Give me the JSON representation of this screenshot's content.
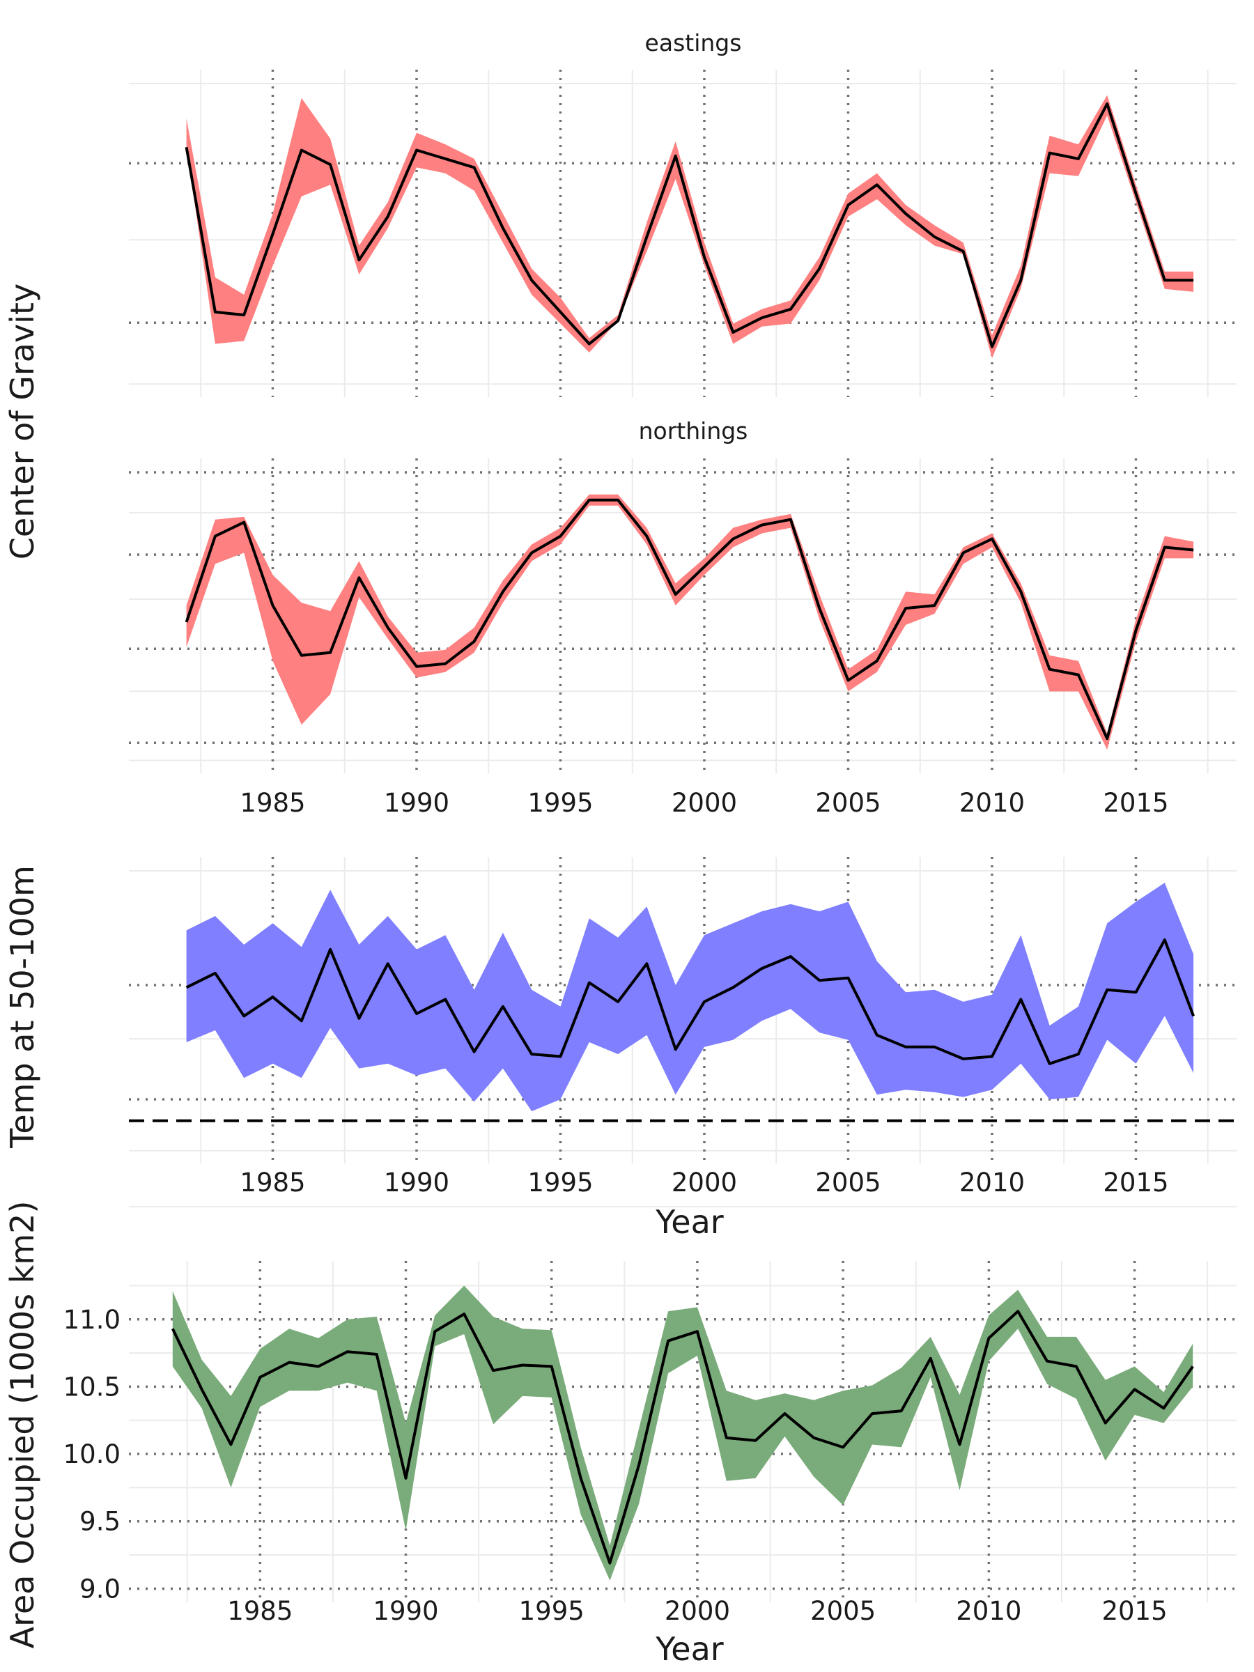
{
  "y_axis_titles": {
    "cog": "Center of Gravity",
    "temp": "Temp at 50-100m",
    "area": "Area Occupied (1000s km2)"
  },
  "x_axis_title": "Year",
  "colors": {
    "eastings_band": "#ff8080",
    "northings_band": "#ff8080",
    "temp_band": "#7f7fff",
    "area_band": "#7aab7a",
    "line": "#000000",
    "grid": "#ebebeb",
    "dotted_grid": "#707070"
  },
  "chart_data": [
    {
      "type": "area",
      "panel": "eastings",
      "title": "eastings",
      "x": [
        1982,
        1983,
        1984,
        1985,
        1986,
        1987,
        1988,
        1989,
        1990,
        1991,
        1992,
        1993,
        1994,
        1995,
        1996,
        1997,
        1998,
        1999,
        2000,
        2001,
        2002,
        2003,
        2004,
        2005,
        2006,
        2007,
        2008,
        2009,
        2010,
        2011,
        2012,
        2013,
        2014,
        2015,
        2016,
        2017
      ],
      "y_tick_labels": "none",
      "grid": true,
      "ylim": [
        0,
        1
      ],
      "series": [
        {
          "values": [
            0.81,
            0.24,
            0.23,
            0.51,
            0.8,
            0.75,
            0.42,
            0.57,
            0.8,
            0.77,
            0.74,
            0.53,
            0.35,
            0.24,
            0.13,
            0.21,
            0.5,
            0.78,
            0.43,
            0.17,
            0.22,
            0.25,
            0.39,
            0.61,
            0.68,
            0.58,
            0.5,
            0.45,
            0.12,
            0.35,
            0.79,
            0.77,
            0.96,
            0.65,
            0.35,
            0.35
          ],
          "lower": [
            0.81,
            0.13,
            0.14,
            0.4,
            0.64,
            0.68,
            0.37,
            0.53,
            0.74,
            0.72,
            0.66,
            0.48,
            0.3,
            0.2,
            0.1,
            0.21,
            0.45,
            0.7,
            0.4,
            0.13,
            0.19,
            0.2,
            0.35,
            0.57,
            0.63,
            0.54,
            0.47,
            0.44,
            0.08,
            0.32,
            0.72,
            0.71,
            0.92,
            0.62,
            0.32,
            0.31
          ],
          "upper": [
            0.91,
            0.36,
            0.3,
            0.58,
            0.98,
            0.84,
            0.47,
            0.62,
            0.86,
            0.82,
            0.77,
            0.58,
            0.39,
            0.29,
            0.15,
            0.23,
            0.55,
            0.83,
            0.48,
            0.2,
            0.25,
            0.28,
            0.43,
            0.65,
            0.72,
            0.61,
            0.54,
            0.48,
            0.16,
            0.4,
            0.85,
            0.82,
            0.99,
            0.68,
            0.38,
            0.38
          ]
        }
      ]
    },
    {
      "type": "area",
      "panel": "northings",
      "title": "northings",
      "x": [
        1982,
        1983,
        1984,
        1985,
        1986,
        1987,
        1988,
        1989,
        1990,
        1991,
        1992,
        1993,
        1994,
        1995,
        1996,
        1997,
        1998,
        1999,
        2000,
        2001,
        2002,
        2003,
        2004,
        2005,
        2006,
        2007,
        2008,
        2009,
        2010,
        2011,
        2012,
        2013,
        2014,
        2015,
        2016,
        2017
      ],
      "y_tick_labels": "none",
      "grid": true,
      "ylim": [
        0,
        1
      ],
      "series": [
        {
          "values": [
            0.49,
            0.8,
            0.85,
            0.55,
            0.37,
            0.38,
            0.65,
            0.47,
            0.33,
            0.34,
            0.42,
            0.6,
            0.74,
            0.8,
            0.93,
            0.93,
            0.8,
            0.59,
            0.69,
            0.79,
            0.84,
            0.86,
            0.54,
            0.28,
            0.35,
            0.54,
            0.55,
            0.74,
            0.79,
            0.6,
            0.32,
            0.3,
            0.07,
            0.46,
            0.76,
            0.75
          ],
          "lower": [
            0.4,
            0.7,
            0.74,
            0.35,
            0.12,
            0.23,
            0.58,
            0.43,
            0.29,
            0.31,
            0.38,
            0.56,
            0.71,
            0.77,
            0.91,
            0.91,
            0.77,
            0.55,
            0.66,
            0.76,
            0.81,
            0.83,
            0.5,
            0.24,
            0.31,
            0.48,
            0.52,
            0.7,
            0.76,
            0.56,
            0.24,
            0.24,
            0.03,
            0.42,
            0.72,
            0.72
          ],
          "upper": [
            0.55,
            0.86,
            0.87,
            0.66,
            0.56,
            0.53,
            0.71,
            0.51,
            0.38,
            0.39,
            0.47,
            0.64,
            0.77,
            0.83,
            0.95,
            0.95,
            0.83,
            0.63,
            0.72,
            0.83,
            0.86,
            0.88,
            0.59,
            0.32,
            0.39,
            0.6,
            0.59,
            0.76,
            0.81,
            0.63,
            0.37,
            0.35,
            0.09,
            0.5,
            0.8,
            0.78
          ]
        }
      ]
    },
    {
      "type": "area",
      "panel": "temp",
      "x": [
        1982,
        1983,
        1984,
        1985,
        1986,
        1987,
        1988,
        1989,
        1990,
        1991,
        1992,
        1993,
        1994,
        1995,
        1996,
        1997,
        1998,
        1999,
        2000,
        2001,
        2002,
        2003,
        2004,
        2005,
        2006,
        2007,
        2008,
        2009,
        2010,
        2011,
        2012,
        2013,
        2014,
        2015,
        2016,
        2017
      ],
      "x_ticks": [
        1985,
        1990,
        1995,
        2000,
        2005,
        2010,
        2015
      ],
      "xlabel": "Year",
      "ylabel": "Temp at 50-100m",
      "y_tick_labels": "none",
      "reference_line": "dashed horizontal",
      "grid": true,
      "ylim": [
        0,
        1
      ],
      "series": [
        {
          "values": [
            0.56,
            0.62,
            0.44,
            0.52,
            0.42,
            0.72,
            0.43,
            0.66,
            0.45,
            0.51,
            0.29,
            0.48,
            0.28,
            0.27,
            0.58,
            0.5,
            0.66,
            0.3,
            0.5,
            0.56,
            0.64,
            0.69,
            0.59,
            0.6,
            0.36,
            0.31,
            0.31,
            0.26,
            0.27,
            0.51,
            0.24,
            0.28,
            0.55,
            0.54,
            0.76,
            0.44
          ],
          "lower": [
            0.33,
            0.38,
            0.18,
            0.24,
            0.18,
            0.39,
            0.22,
            0.24,
            0.19,
            0.22,
            0.08,
            0.22,
            0.04,
            0.09,
            0.33,
            0.28,
            0.36,
            0.11,
            0.31,
            0.34,
            0.42,
            0.47,
            0.37,
            0.34,
            0.11,
            0.13,
            0.12,
            0.1,
            0.13,
            0.24,
            0.09,
            0.1,
            0.34,
            0.24,
            0.44,
            0.2
          ],
          "upper": [
            0.8,
            0.86,
            0.74,
            0.83,
            0.73,
            0.97,
            0.74,
            0.86,
            0.72,
            0.78,
            0.55,
            0.79,
            0.55,
            0.48,
            0.85,
            0.77,
            0.9,
            0.57,
            0.78,
            0.83,
            0.88,
            0.91,
            0.88,
            0.92,
            0.67,
            0.54,
            0.55,
            0.5,
            0.53,
            0.78,
            0.4,
            0.48,
            0.83,
            0.92,
            1.0,
            0.7
          ]
        }
      ]
    },
    {
      "type": "area",
      "panel": "area",
      "x": [
        1982,
        1983,
        1984,
        1985,
        1986,
        1987,
        1988,
        1989,
        1990,
        1991,
        1992,
        1993,
        1994,
        1995,
        1996,
        1997,
        1998,
        1999,
        2000,
        2001,
        2002,
        2003,
        2004,
        2005,
        2006,
        2007,
        2008,
        2009,
        2010,
        2011,
        2012,
        2013,
        2014,
        2015,
        2016,
        2017
      ],
      "x_ticks": [
        1985,
        1990,
        1995,
        2000,
        2005,
        2010,
        2015
      ],
      "y_ticks": [
        9.0,
        9.5,
        10.0,
        10.5,
        11.0
      ],
      "y_tick_labels": [
        "9.0",
        "9.5",
        "10.0",
        "10.5",
        "11.0"
      ],
      "xlabel": "Year",
      "ylabel": "Area Occupied (1000s km2)",
      "grid": true,
      "ylim": [
        8.95,
        11.33
      ],
      "series": [
        {
          "values": [
            10.93,
            10.48,
            10.07,
            10.57,
            10.68,
            10.65,
            10.76,
            10.74,
            9.82,
            10.91,
            11.04,
            10.62,
            10.66,
            10.65,
            9.82,
            9.19,
            9.92,
            10.84,
            10.91,
            10.12,
            10.1,
            10.3,
            10.12,
            10.05,
            10.3,
            10.32,
            10.71,
            10.07,
            10.86,
            11.06,
            10.69,
            10.65,
            10.23,
            10.48,
            10.34,
            10.65
          ],
          "lower": [
            10.65,
            10.34,
            9.75,
            10.35,
            10.47,
            10.47,
            10.53,
            10.47,
            9.43,
            10.8,
            10.89,
            10.22,
            10.43,
            10.42,
            9.55,
            9.06,
            9.63,
            10.6,
            10.73,
            9.8,
            9.82,
            10.13,
            9.83,
            9.62,
            10.07,
            10.05,
            10.57,
            9.73,
            10.69,
            10.93,
            10.52,
            10.41,
            9.95,
            10.29,
            10.23,
            10.5
          ],
          "upper": [
            11.21,
            10.7,
            10.43,
            10.78,
            10.93,
            10.86,
            11.0,
            11.02,
            10.23,
            11.03,
            11.25,
            11.02,
            10.93,
            10.92,
            10.05,
            9.32,
            10.19,
            11.06,
            11.09,
            10.47,
            10.4,
            10.45,
            10.4,
            10.47,
            10.51,
            10.64,
            10.87,
            10.44,
            11.03,
            11.22,
            10.87,
            10.87,
            10.55,
            10.65,
            10.46,
            10.82
          ]
        }
      ]
    }
  ]
}
